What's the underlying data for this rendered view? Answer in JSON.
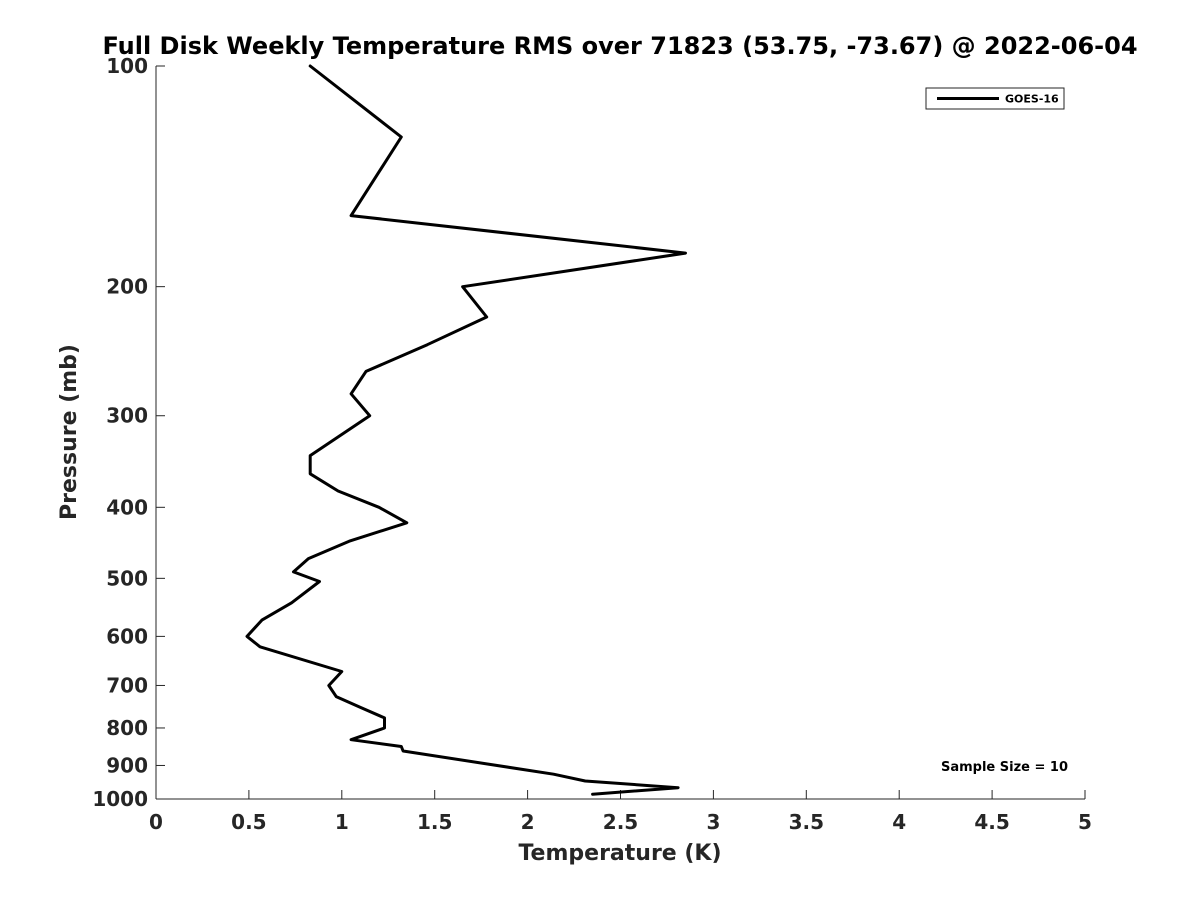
{
  "chart_data": {
    "type": "line",
    "title": "Full Disk Weekly Temperature RMS over 71823 (53.75, -73.67) @ 2022-06-04",
    "xlabel": "Temperature (K)",
    "ylabel": "Pressure (mb)",
    "xlim": [
      0,
      5
    ],
    "ylim": [
      100,
      1000
    ],
    "y_scale": "log",
    "y_reversed": true,
    "x_ticks": [
      0,
      0.5,
      1,
      1.5,
      2,
      2.5,
      3,
      3.5,
      4,
      4.5,
      5
    ],
    "x_tick_labels": [
      "0",
      "0.5",
      "1",
      "1.5",
      "2",
      "2.5",
      "3",
      "3.5",
      "4",
      "4.5",
      "5"
    ],
    "y_ticks": [
      100,
      200,
      300,
      400,
      500,
      600,
      700,
      800,
      900,
      1000
    ],
    "y_tick_labels": [
      "100",
      "200",
      "300",
      "400",
      "500",
      "600",
      "700",
      "800",
      "900",
      "1000"
    ],
    "grid": false,
    "legend_position": "top-right",
    "series": [
      {
        "name": "GOES-16",
        "color": "#000000",
        "points": [
          [
            0.83,
            100
          ],
          [
            1.32,
            125
          ],
          [
            1.05,
            160
          ],
          [
            2.85,
            180
          ],
          [
            1.65,
            200
          ],
          [
            1.78,
            220
          ],
          [
            1.46,
            240
          ],
          [
            1.13,
            261
          ],
          [
            1.05,
            280
          ],
          [
            1.15,
            300
          ],
          [
            0.83,
            340
          ],
          [
            0.83,
            360
          ],
          [
            0.98,
            380
          ],
          [
            1.2,
            400
          ],
          [
            1.35,
            420
          ],
          [
            1.04,
            445
          ],
          [
            0.82,
            470
          ],
          [
            0.74,
            490
          ],
          [
            0.88,
            505
          ],
          [
            0.73,
            540
          ],
          [
            0.57,
            570
          ],
          [
            0.49,
            600
          ],
          [
            0.56,
            620
          ],
          [
            1.0,
            670
          ],
          [
            0.93,
            700
          ],
          [
            0.97,
            725
          ],
          [
            1.1,
            750
          ],
          [
            1.23,
            775
          ],
          [
            1.23,
            800
          ],
          [
            1.05,
            830
          ],
          [
            1.32,
            848
          ],
          [
            1.33,
            860
          ],
          [
            2.14,
            925
          ],
          [
            2.31,
            945
          ],
          [
            2.81,
            965
          ],
          [
            2.35,
            985
          ]
        ]
      }
    ],
    "annotation": "Sample Size = 10"
  }
}
